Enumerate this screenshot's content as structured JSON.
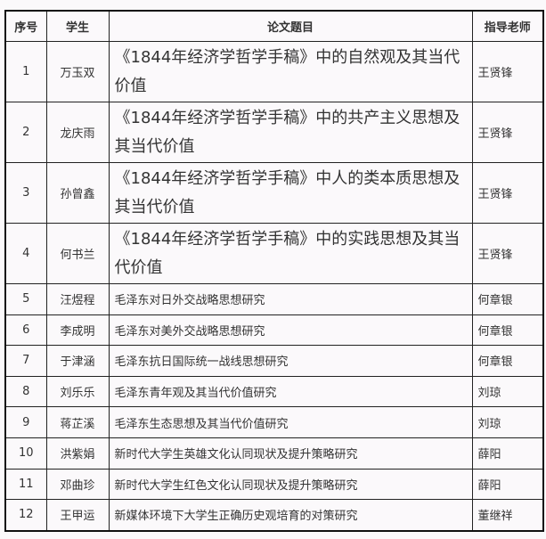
{
  "headers": [
    "序号",
    "学生",
    "论文题目",
    "指导老师"
  ],
  "rows": [
    {
      "no": "1",
      "student": "万玉双",
      "title": "《1844年经济学哲学手稿》中的自然观及其当代价值",
      "advisor": "王贤锋"
    },
    {
      "no": "2",
      "student": "龙庆雨",
      "title": "《1844年经济学哲学手稿》中的共产主义思想及其当代价值",
      "advisor": "王贤锋"
    },
    {
      "no": "3",
      "student": "孙曾鑫",
      "title": "《1844年经济学哲学手稿》中人的类本质思想及其当代价值",
      "advisor": "王贤锋"
    },
    {
      "no": "4",
      "student": "何书兰",
      "title": "《1844年经济学哲学手稿》中的实践思想及其当代价值",
      "advisor": "王贤锋"
    },
    {
      "no": "5",
      "student": "汪煜程",
      "title": "毛泽东对日外交战略思想研究",
      "advisor": "何章银"
    },
    {
      "no": "6",
      "student": "李成明",
      "title": "毛泽东对美外交战略思想研究",
      "advisor": "何章银"
    },
    {
      "no": "7",
      "student": "于津涵",
      "title": "毛泽东抗日国际统一战线思想研究",
      "advisor": "何章银"
    },
    {
      "no": "8",
      "student": "刘乐乐",
      "title": "毛泽东青年观及其当代价值研究",
      "advisor": "刘琼"
    },
    {
      "no": "9",
      "student": "蒋芷溪",
      "title": "毛泽东生态思想及其当代价值研究",
      "advisor": "刘琼"
    },
    {
      "no": "10",
      "student": "洪紫娟",
      "title": "新时代大学生英雄文化认同现状及提升策略研究",
      "advisor": "薛阳"
    },
    {
      "no": "11",
      "student": "邓曲珍",
      "title": "新时代大学生红色文化认同现状及提升策略研究",
      "advisor": "薛阳"
    },
    {
      "no": "12",
      "student": "王甲运",
      "title": "新媒体环境下大学生正确历史观培育的对策研究",
      "advisor": "董继祥"
    }
  ]
}
